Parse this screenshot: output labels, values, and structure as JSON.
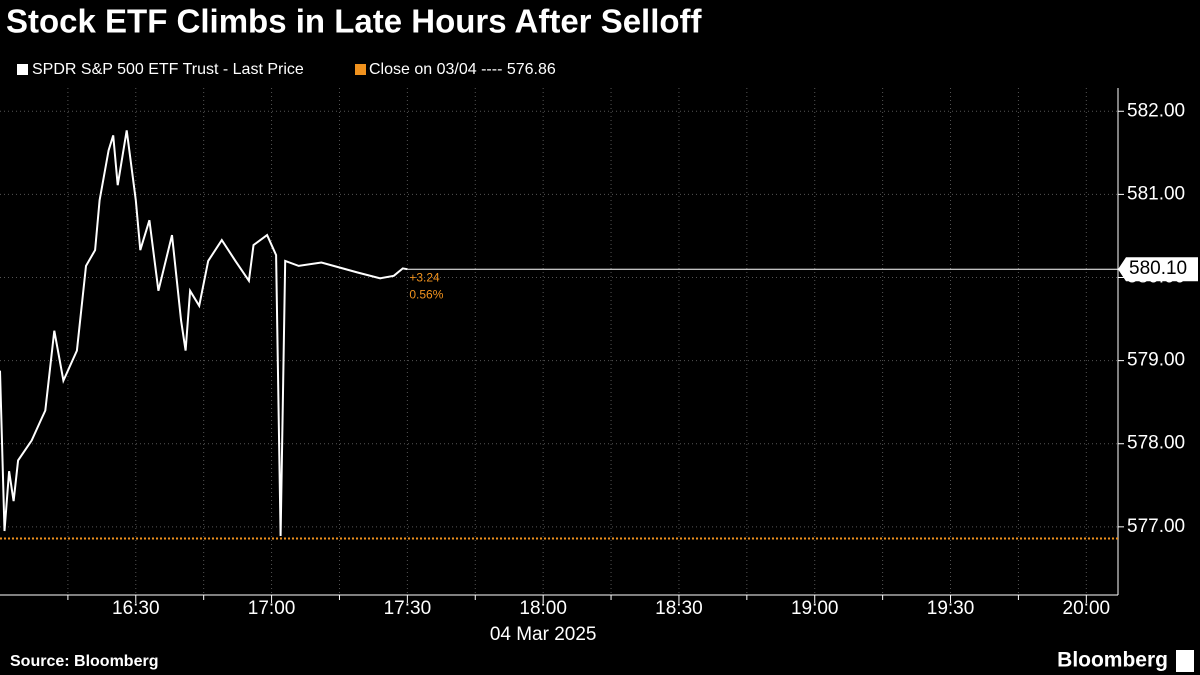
{
  "chart_data": {
    "type": "line",
    "title": "Stock ETF Climbs in Late Hours After Selloff",
    "source": "Source: Bloomberg",
    "brand": "Bloomberg",
    "date_label": "04 Mar 2025",
    "x": [
      "16:00",
      "16:01",
      "16:02",
      "16:03",
      "16:04",
      "16:07",
      "16:09",
      "16:10",
      "16:12",
      "16:14",
      "16:17",
      "16:19",
      "16:21",
      "16:22",
      "16:24",
      "16:25",
      "16:26",
      "16:28",
      "16:30",
      "16:31",
      "16:33",
      "16:35",
      "16:38",
      "16:40",
      "16:41",
      "16:42",
      "16:44",
      "16:46",
      "16:49",
      "16:52",
      "16:55",
      "16:56",
      "16:59",
      "17:01",
      "17:02",
      "17:03",
      "17:06",
      "17:11",
      "17:15",
      "17:19",
      "17:24",
      "17:27",
      "17:29",
      "17:30"
    ],
    "series": [
      {
        "name": "SPDR S&P 500 ETF Trust - Last Price",
        "color": "#ffffff",
        "values": [
          578.88,
          576.95,
          577.67,
          577.31,
          577.8,
          578.04,
          578.28,
          578.4,
          579.36,
          578.76,
          579.12,
          580.14,
          580.33,
          580.93,
          581.53,
          581.71,
          581.11,
          581.77,
          580.93,
          580.33,
          580.69,
          579.84,
          580.51,
          579.48,
          579.12,
          579.84,
          579.66,
          580.2,
          580.45,
          580.2,
          579.96,
          580.39,
          580.51,
          580.27,
          576.89,
          580.2,
          580.14,
          580.18,
          580.12,
          580.06,
          579.99,
          580.02,
          580.11,
          580.1
        ]
      }
    ],
    "reference": {
      "name": "Close on 03/04 ---- 576.86",
      "color": "#f0921e",
      "value": 576.86
    },
    "last_price": {
      "value": 580.1,
      "label": "580.10"
    },
    "change": "+3.24",
    "change_pct": "0.56%",
    "xlim": [
      "16:00",
      "20:07"
    ],
    "xticks": [
      "16:30",
      "17:00",
      "17:30",
      "18:00",
      "18:30",
      "19:00",
      "19:30",
      "20:00"
    ],
    "ylim": [
      576.18,
      582.28
    ],
    "yticks": [
      {
        "value": 577,
        "label": "577.00"
      },
      {
        "value": 578,
        "label": "578.00"
      },
      {
        "value": 579,
        "label": "579.00"
      },
      {
        "value": 580,
        "label": "580.00"
      },
      {
        "value": 581,
        "label": "581.00"
      },
      {
        "value": 582,
        "label": "582.00"
      }
    ],
    "grid": true
  }
}
